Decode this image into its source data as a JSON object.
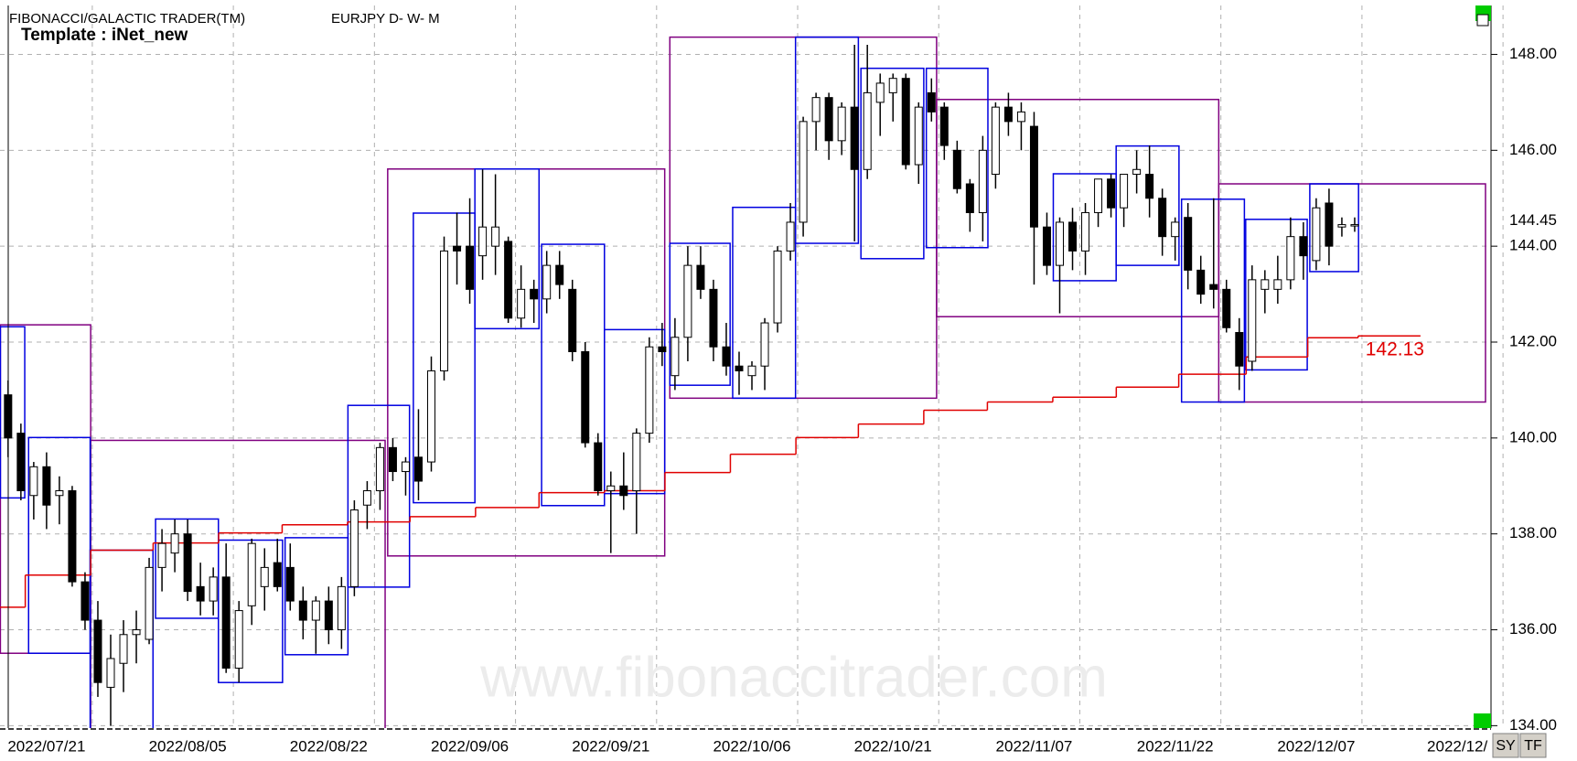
{
  "chart_data": {
    "type": "candlestick",
    "title": "FIBONACCI/GALACTIC TRADER(TM)",
    "subtitle": "EURJPY D- W- M",
    "template": "Template : iNet_new",
    "watermark": "www.fibonaccitrader.com",
    "grid": true,
    "up_color": "#ffffff",
    "down_color": "#000000",
    "x": [
      0,
      1,
      2,
      3,
      4,
      5,
      6,
      7,
      8,
      9,
      10,
      11,
      12,
      13,
      14,
      15,
      16,
      17,
      18,
      19,
      20,
      21,
      22,
      23,
      24,
      25,
      26,
      27,
      28,
      29,
      30,
      31,
      32,
      33,
      34,
      35,
      36,
      37,
      38,
      39,
      40,
      41,
      42,
      43,
      44,
      45,
      46,
      47,
      48,
      49,
      50,
      51,
      52,
      53,
      54,
      55,
      56,
      57,
      58,
      59,
      60,
      61,
      62,
      63,
      64,
      65,
      66,
      67,
      68,
      69,
      70,
      71,
      72,
      73,
      74,
      75,
      76,
      77,
      78,
      79,
      80,
      81,
      82,
      83,
      84,
      85,
      86,
      87,
      88,
      89,
      90,
      91,
      92,
      93,
      94,
      95,
      96,
      97,
      98,
      99,
      100,
      101,
      102,
      103,
      104,
      105
    ],
    "open": [
      140.9,
      140.1,
      138.8,
      139.4,
      138.8,
      138.9,
      137.0,
      136.2,
      134.8,
      135.3,
      135.9,
      135.8,
      137.3,
      137.6,
      138.0,
      136.9,
      136.6,
      137.1,
      135.2,
      136.5,
      136.9,
      137.4,
      137.3,
      136.6,
      136.2,
      136.6,
      136.0,
      136.9,
      138.6,
      138.9,
      139.8,
      139.3,
      139.6,
      139.5,
      141.4,
      144.0,
      144.0,
      143.8,
      144.0,
      144.1,
      142.5,
      143.1,
      142.9,
      143.6,
      143.1,
      141.8,
      139.9,
      138.9,
      139.0,
      138.9,
      140.1,
      141.9,
      141.3,
      142.1,
      143.6,
      143.1,
      141.9,
      141.5,
      141.3,
      141.5,
      142.4,
      143.9,
      144.5,
      146.6,
      147.1,
      146.2,
      146.9,
      145.6,
      147.0,
      147.2,
      147.5,
      145.7,
      147.2,
      146.9,
      146.0,
      145.3,
      144.7,
      145.5,
      146.9,
      146.6,
      146.5,
      144.4,
      143.6,
      144.5,
      143.9,
      144.7,
      145.4,
      144.8,
      145.5,
      145.5,
      145.0,
      144.2,
      144.6,
      143.5,
      143.2,
      143.1,
      142.2,
      141.6,
      143.1,
      143.1,
      143.3,
      144.2,
      143.7,
      144.9,
      144.4,
      144.45
    ],
    "high": [
      141.2,
      140.3,
      139.5,
      139.7,
      139.2,
      139.0,
      137.2,
      136.6,
      135.9,
      136.2,
      136.4,
      137.5,
      138.1,
      138.3,
      138.3,
      137.4,
      137.3,
      137.8,
      136.6,
      137.9,
      137.7,
      137.9,
      137.8,
      136.9,
      136.7,
      136.9,
      137.1,
      138.7,
      139.1,
      139.9,
      140.0,
      139.6,
      140.6,
      141.7,
      144.2,
      144.7,
      145.0,
      145.6,
      145.5,
      144.2,
      143.6,
      143.3,
      143.9,
      143.9,
      143.3,
      142.0,
      140.1,
      139.3,
      139.7,
      140.2,
      142.1,
      142.4,
      142.5,
      144.0,
      144.0,
      143.3,
      142.4,
      141.8,
      141.6,
      142.5,
      144.0,
      144.9,
      146.7,
      147.2,
      147.2,
      147.0,
      148.2,
      148.2,
      147.6,
      147.6,
      147.6,
      147.0,
      147.5,
      147.0,
      146.2,
      145.4,
      146.3,
      147.0,
      147.2,
      147.0,
      146.8,
      144.7,
      144.6,
      144.8,
      144.9,
      145.4,
      145.5,
      145.5,
      146.0,
      146.1,
      145.2,
      144.6,
      144.9,
      143.8,
      145.0,
      143.3,
      142.5,
      143.6,
      143.5,
      143.8,
      144.6,
      144.5,
      145.0,
      145.2,
      144.6,
      144.6
    ],
    "low": [
      139.6,
      138.7,
      138.3,
      138.1,
      138.2,
      136.9,
      136.0,
      134.6,
      134.0,
      134.7,
      135.3,
      135.7,
      136.8,
      137.2,
      136.6,
      136.3,
      136.3,
      135.1,
      134.9,
      136.1,
      136.4,
      136.8,
      136.4,
      135.8,
      135.5,
      135.7,
      135.6,
      136.7,
      138.1,
      138.5,
      139.1,
      138.8,
      138.7,
      139.3,
      141.2,
      143.2,
      142.8,
      143.3,
      143.4,
      142.4,
      142.3,
      142.4,
      142.6,
      142.9,
      141.6,
      139.8,
      138.8,
      137.6,
      138.5,
      138.0,
      139.9,
      141.5,
      141.0,
      141.6,
      142.9,
      141.6,
      141.3,
      140.9,
      141.0,
      141.0,
      142.2,
      143.7,
      144.2,
      146.0,
      145.8,
      145.9,
      144.1,
      145.4,
      146.3,
      146.6,
      145.6,
      145.3,
      146.6,
      145.8,
      145.1,
      144.3,
      144.1,
      145.2,
      146.3,
      146.0,
      143.2,
      143.4,
      142.6,
      143.5,
      143.4,
      144.4,
      144.6,
      144.4,
      145.1,
      144.6,
      143.8,
      143.7,
      143.1,
      142.8,
      142.7,
      142.2,
      141.0,
      141.4,
      142.6,
      142.8,
      143.1,
      143.3,
      143.5,
      143.6,
      144.2,
      144.3
    ],
    "close": [
      140.0,
      138.9,
      139.4,
      138.6,
      138.9,
      137.0,
      136.2,
      134.9,
      135.4,
      135.9,
      136.0,
      137.3,
      137.8,
      138.0,
      136.8,
      136.6,
      137.1,
      135.2,
      136.4,
      137.8,
      137.3,
      136.9,
      136.6,
      136.2,
      136.6,
      136.0,
      136.9,
      138.5,
      138.9,
      139.8,
      139.3,
      139.5,
      139.1,
      141.4,
      143.9,
      143.9,
      143.1,
      144.4,
      144.4,
      142.5,
      143.1,
      142.9,
      143.6,
      143.2,
      141.8,
      139.9,
      138.9,
      139.0,
      138.8,
      140.1,
      141.9,
      141.8,
      142.1,
      143.6,
      143.1,
      141.9,
      141.5,
      141.4,
      141.5,
      142.4,
      143.9,
      144.5,
      146.6,
      147.1,
      146.2,
      146.9,
      145.6,
      147.2,
      147.4,
      147.5,
      145.7,
      146.9,
      146.8,
      146.1,
      145.2,
      144.7,
      146.0,
      146.9,
      146.6,
      146.8,
      144.4,
      143.6,
      144.5,
      143.9,
      144.7,
      145.4,
      144.8,
      145.5,
      145.6,
      145.0,
      144.2,
      144.5,
      143.5,
      143.0,
      143.1,
      142.3,
      141.5,
      143.3,
      143.3,
      143.3,
      144.2,
      143.8,
      144.8,
      144.0,
      144.45,
      144.45
    ],
    "last_price": 144.45,
    "xlim": [
      -0.63,
      115.63
    ],
    "xticks": [
      {
        "value": 3,
        "label": "2022/07/21"
      },
      {
        "value": 14,
        "label": "2022/08/05"
      },
      {
        "value": 25,
        "label": "2022/08/22"
      },
      {
        "value": 36,
        "label": "2022/09/06"
      },
      {
        "value": 47,
        "label": "2022/09/21"
      },
      {
        "value": 58,
        "label": "2022/10/06"
      },
      {
        "value": 69,
        "label": "2022/10/21"
      },
      {
        "value": 80,
        "label": "2022/11/07"
      },
      {
        "value": 91,
        "label": "2022/11/22"
      },
      {
        "value": 102,
        "label": "2022/12/07"
      },
      {
        "value": 113,
        "label": "2022/12/"
      }
    ],
    "ylim": [
      133.95,
      149.02
    ],
    "yticks": [
      {
        "value": 134,
        "label": "134.00"
      },
      {
        "value": 136,
        "label": "136.00"
      },
      {
        "value": 138,
        "label": "138.00"
      },
      {
        "value": 140,
        "label": "140.00"
      },
      {
        "value": 142,
        "label": "142.00"
      },
      {
        "value": 144,
        "label": "144.00"
      },
      {
        "value": 146,
        "label": "146.00"
      },
      {
        "value": 148,
        "label": "148.00"
      }
    ],
    "monthly_boxes": {
      "color": "#800080",
      "from": [
        -0.6,
        6.44,
        29.6,
        51.6,
        72.4,
        94.4
      ],
      "to": [
        6.44,
        29.4,
        51.2,
        72.4,
        94.4,
        115.2
      ],
      "high": [
        142.36,
        139.95,
        145.61,
        148.36,
        147.06,
        145.3
      ],
      "low": [
        135.51,
        133.5,
        137.54,
        140.83,
        142.53,
        140.75
      ]
    },
    "weekly_boxes": {
      "color": "#0000e0",
      "from": [
        -0.6,
        1.6,
        6.4,
        11.5,
        16.4,
        21.6,
        26.5,
        31.6,
        36.4,
        41.6,
        46.5,
        51.6,
        56.5,
        61.4,
        66.5,
        71.6,
        81.5,
        86.4,
        91.5,
        96.5,
        101.5
      ],
      "to": [
        1.3,
        6.4,
        11.3,
        16.4,
        21.4,
        26.5,
        31.3,
        36.4,
        41.4,
        46.5,
        51.2,
        56.3,
        61.4,
        66.3,
        71.4,
        76.4,
        86.4,
        91.3,
        96.4,
        101.3,
        105.3
      ],
      "high": [
        142.32,
        140.01,
        137.66,
        138.31,
        137.87,
        137.92,
        140.68,
        144.69,
        145.61,
        144.04,
        142.26,
        144.06,
        144.81,
        148.36,
        147.71,
        147.71,
        145.51,
        146.09,
        144.98,
        144.56,
        145.3
      ],
      "low": [
        138.75,
        135.51,
        133.5,
        136.24,
        134.9,
        135.48,
        136.89,
        138.65,
        142.28,
        138.59,
        138.84,
        141.1,
        140.83,
        144.06,
        143.74,
        143.97,
        143.28,
        143.6,
        140.75,
        141.42,
        143.47
      ]
    },
    "support_line": {
      "color": "#e00000",
      "edges": [
        -0.63,
        1.34,
        6.44,
        11.31,
        16.42,
        21.37,
        26.47,
        31.34,
        36.45,
        41.4,
        46.5,
        51.22,
        56.32,
        61.43,
        66.3,
        71.4,
        76.36,
        81.46,
        86.41,
        91.28,
        96.54,
        101.34,
        105.27,
        110.13
      ],
      "values": [
        136.47,
        137.14,
        137.66,
        137.81,
        138.02,
        138.19,
        138.25,
        138.36,
        138.55,
        138.86,
        138.9,
        139.28,
        139.66,
        140.01,
        140.29,
        140.58,
        140.75,
        140.85,
        141.06,
        141.33,
        141.69,
        142.09,
        142.13
      ],
      "label": 142.13
    }
  },
  "toolbar": {
    "buttons": [
      "SY",
      "TF"
    ]
  }
}
